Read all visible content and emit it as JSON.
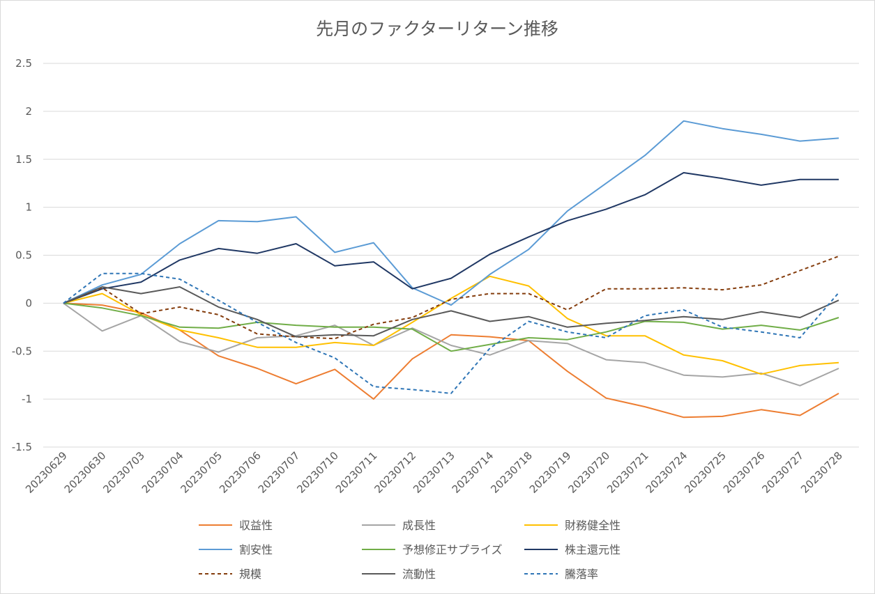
{
  "chart_data": {
    "type": "line",
    "title": "先月のファクターリターン推移",
    "xlabel": "",
    "ylabel": "",
    "ylim": [
      -1.5,
      2.5
    ],
    "y_ticks": [
      "2.5",
      "2",
      "1.5",
      "1",
      "0.5",
      "0",
      "-0.5",
      "-1",
      "-1.5"
    ],
    "y_tick_values": [
      2.5,
      2,
      1.5,
      1,
      0.5,
      0,
      -0.5,
      -1,
      -1.5
    ],
    "grid": true,
    "legend_position": "bottom",
    "categories": [
      "20230629",
      "20230630",
      "20230703",
      "20230704",
      "20230705",
      "20230706",
      "20230707",
      "20230710",
      "20230711",
      "20230712",
      "20230713",
      "20230714",
      "20230718",
      "20230719",
      "20230720",
      "20230721",
      "20230724",
      "20230725",
      "20230726",
      "20230727",
      "20230728"
    ],
    "series": [
      {
        "name": "収益性",
        "color": "#ED7D31",
        "dash": "solid",
        "values": [
          0,
          -0.02,
          -0.1,
          -0.28,
          -0.55,
          -0.68,
          -0.84,
          -0.69,
          -1.0,
          -0.58,
          -0.33,
          -0.35,
          -0.39,
          -0.71,
          -0.99,
          -1.08,
          -1.19,
          -1.18,
          -1.11,
          -1.17,
          -0.94
        ]
      },
      {
        "name": "成長性",
        "color": "#A5A5A5",
        "dash": "solid",
        "values": [
          0,
          -0.29,
          -0.13,
          -0.4,
          -0.51,
          -0.36,
          -0.34,
          -0.23,
          -0.44,
          -0.26,
          -0.44,
          -0.54,
          -0.39,
          -0.42,
          -0.59,
          -0.62,
          -0.75,
          -0.77,
          -0.73,
          -0.86,
          -0.68
        ]
      },
      {
        "name": "財務健全性",
        "color": "#FFC000",
        "dash": "solid",
        "values": [
          0,
          0.1,
          -0.12,
          -0.28,
          -0.36,
          -0.46,
          -0.46,
          -0.41,
          -0.44,
          -0.2,
          0.05,
          0.28,
          0.18,
          -0.16,
          -0.34,
          -0.34,
          -0.54,
          -0.6,
          -0.74,
          -0.65,
          -0.62
        ]
      },
      {
        "name": "割安性",
        "color": "#5B9BD5",
        "dash": "solid",
        "values": [
          0,
          0.19,
          0.3,
          0.62,
          0.86,
          0.85,
          0.9,
          0.53,
          0.63,
          0.16,
          -0.02,
          0.3,
          0.56,
          0.96,
          1.25,
          1.54,
          1.9,
          1.82,
          1.76,
          1.69,
          1.72
        ]
      },
      {
        "name": "予想修正サプライズ",
        "color": "#70AD47",
        "dash": "solid",
        "values": [
          0,
          -0.05,
          -0.13,
          -0.25,
          -0.26,
          -0.2,
          -0.23,
          -0.25,
          -0.25,
          -0.27,
          -0.5,
          -0.43,
          -0.36,
          -0.38,
          -0.3,
          -0.19,
          -0.2,
          -0.27,
          -0.23,
          -0.28,
          -0.15
        ]
      },
      {
        "name": "株主還元性",
        "color": "#203864",
        "dash": "solid",
        "values": [
          0,
          0.15,
          0.22,
          0.45,
          0.57,
          0.52,
          0.62,
          0.39,
          0.43,
          0.15,
          0.26,
          0.51,
          0.69,
          0.86,
          0.98,
          1.13,
          1.36,
          1.3,
          1.23,
          1.29,
          1.29
        ]
      },
      {
        "name": "規模",
        "color": "#843C0C",
        "dash": "dashed",
        "values": [
          0,
          0.16,
          -0.11,
          -0.04,
          -0.12,
          -0.32,
          -0.35,
          -0.37,
          -0.22,
          -0.15,
          0.04,
          0.1,
          0.1,
          -0.07,
          0.15,
          0.15,
          0.16,
          0.14,
          0.19,
          0.34,
          0.49
        ]
      },
      {
        "name": "流動性",
        "color": "#595959",
        "dash": "solid",
        "values": [
          0,
          0.17,
          0.1,
          0.17,
          -0.04,
          -0.17,
          -0.35,
          -0.33,
          -0.34,
          -0.17,
          -0.08,
          -0.19,
          -0.14,
          -0.25,
          -0.21,
          -0.18,
          -0.14,
          -0.17,
          -0.09,
          -0.15,
          0.03
        ]
      },
      {
        "name": "騰落率",
        "color": "#2E75B6",
        "dash": "dashed",
        "values": [
          0,
          0.31,
          0.31,
          0.25,
          0.03,
          -0.2,
          -0.41,
          -0.57,
          -0.87,
          -0.9,
          -0.94,
          -0.47,
          -0.19,
          -0.3,
          -0.36,
          -0.13,
          -0.07,
          -0.25,
          -0.3,
          -0.36,
          0.11
        ]
      }
    ]
  }
}
